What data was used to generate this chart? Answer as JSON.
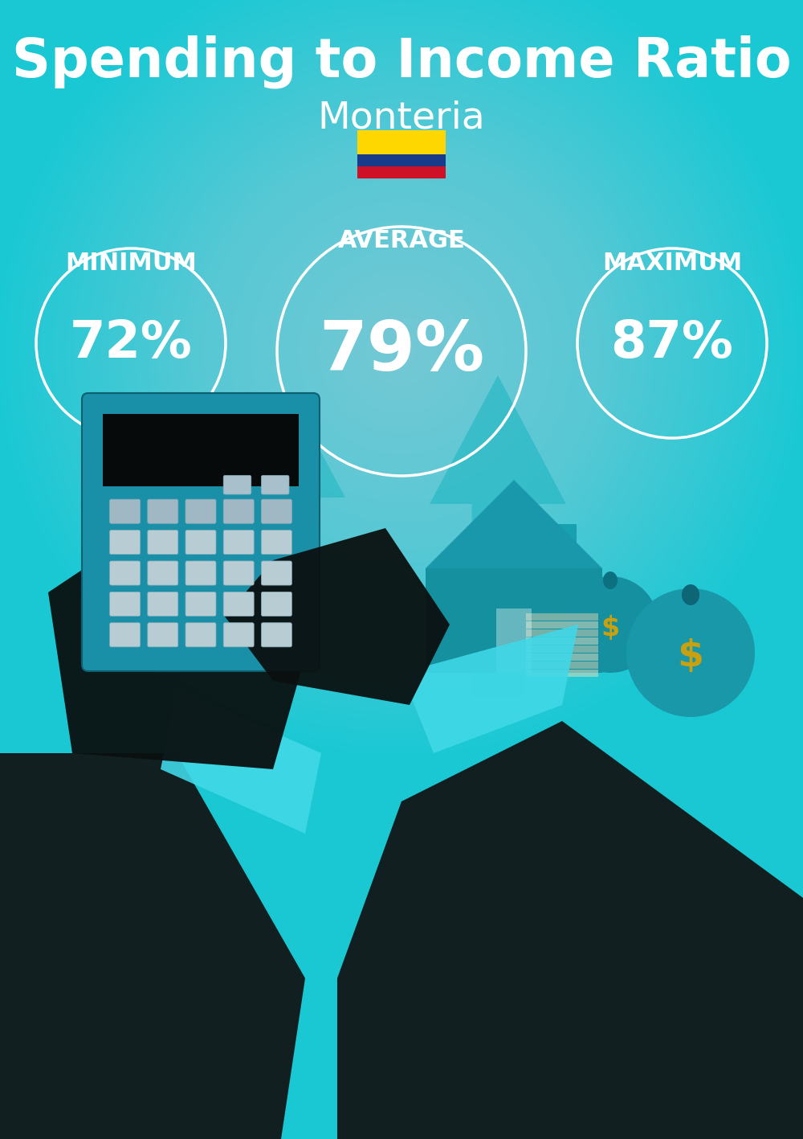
{
  "title": "Spending to Income Ratio",
  "subtitle": "Monteria",
  "bg_color": "#1ac8d4",
  "text_color": "#ffffff",
  "title_fontsize": 48,
  "subtitle_fontsize": 34,
  "labels": [
    "MINIMUM",
    "AVERAGE",
    "MAXIMUM"
  ],
  "values": [
    "72%",
    "79%",
    "87%"
  ],
  "label_fontsize": 22,
  "value_fontsize_small": 46,
  "value_fontsize_large": 62,
  "flag_colors": [
    "#FFD700",
    "#1a3a8a",
    "#CE1126"
  ],
  "circle_edge_color": "#ffffff",
  "arrow_color": "#18b5c0",
  "house_color": "#18aabc",
  "suit_color": "#111111",
  "calc_color": "#1a90a8",
  "button_color": "#b8ccd4"
}
